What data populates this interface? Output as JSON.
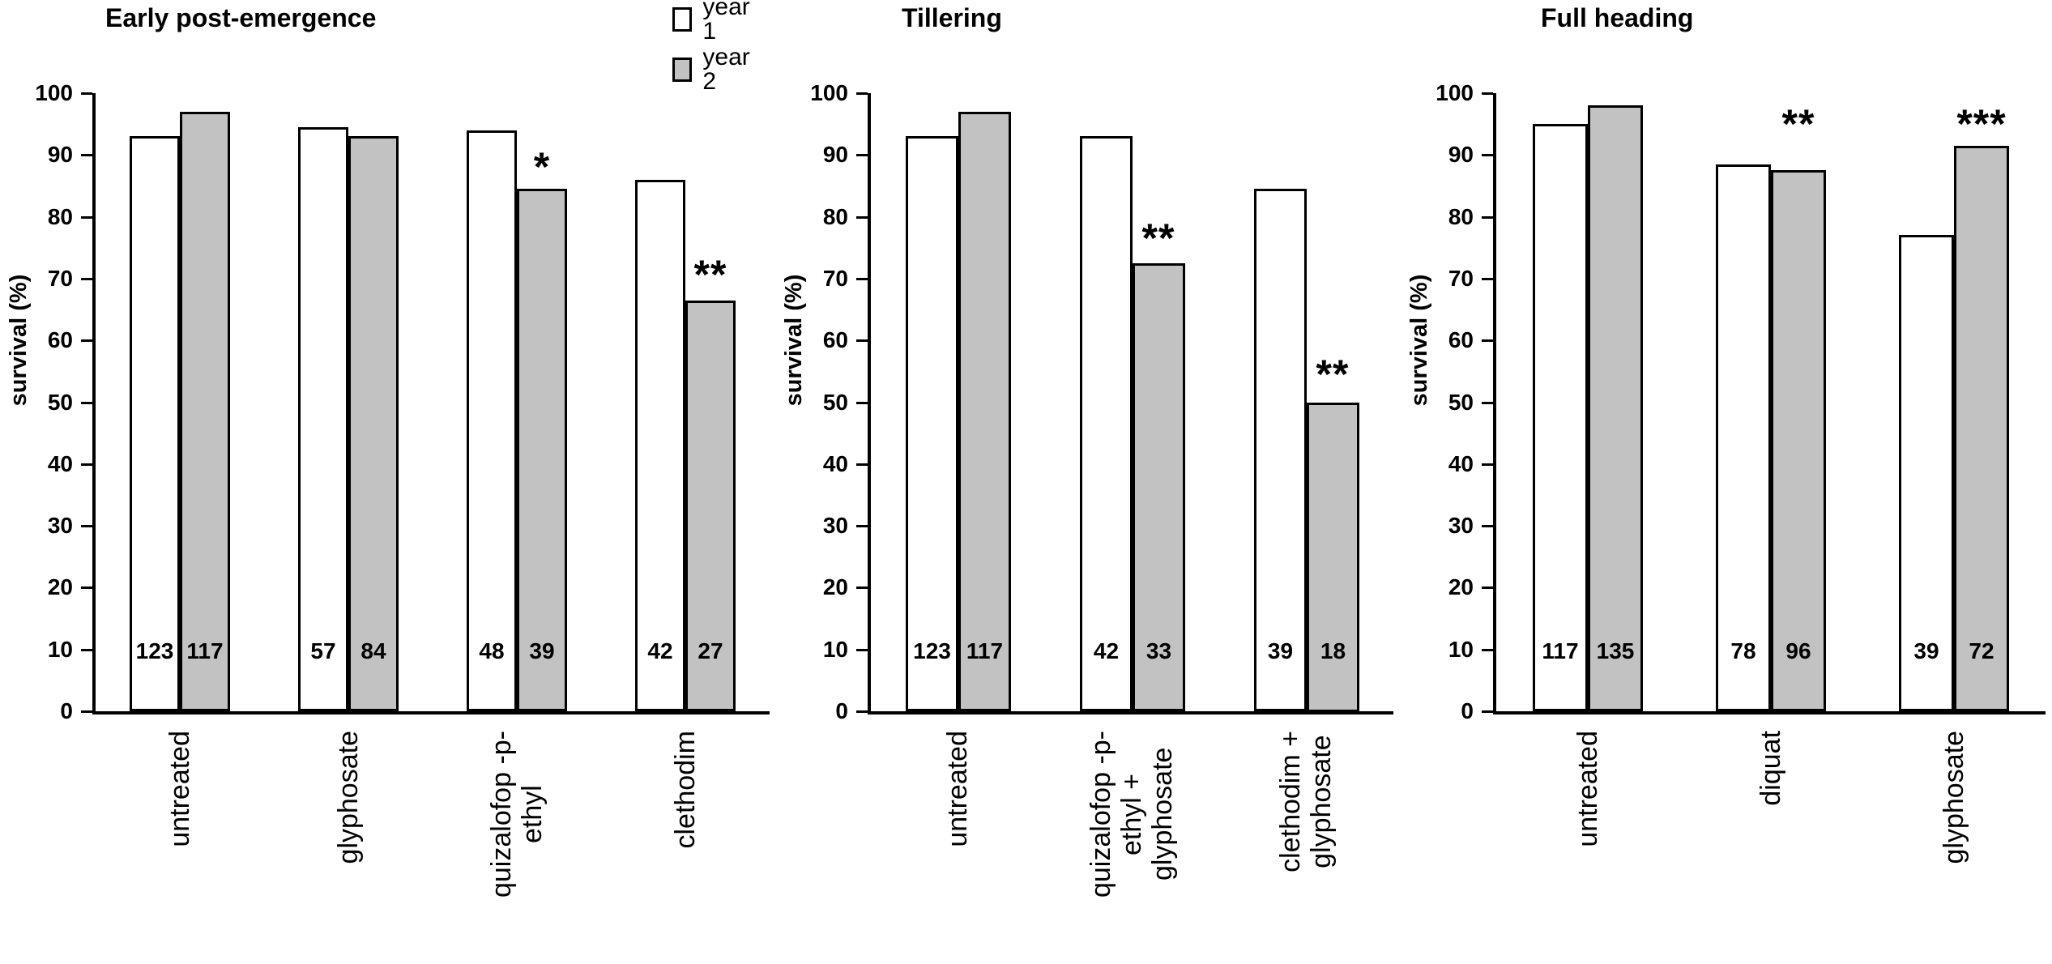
{
  "figure": {
    "background": "#ffffff",
    "bar_border_color": "#000000"
  },
  "legend": {
    "items": [
      {
        "label": "year 1",
        "color": "#ffffff"
      },
      {
        "label": "year 2",
        "color": "#c2c2c2"
      }
    ]
  },
  "chart_data": [
    {
      "type": "bar",
      "title": "Early post-emergence",
      "ylabel": "survival (%)",
      "ylim": [
        0,
        100
      ],
      "yticks": [
        0,
        10,
        20,
        30,
        40,
        50,
        60,
        70,
        80,
        90,
        100
      ],
      "grid": false,
      "legend_position": "top-right-of-panel",
      "categories": [
        "untreated",
        "glyphosate",
        "quizalofop -p-\nethyl",
        "clethodim"
      ],
      "series": [
        {
          "name": "year 1",
          "color": "#ffffff",
          "values": [
            93,
            94.5,
            94,
            86
          ]
        },
        {
          "name": "year 2",
          "color": "#c2c2c2",
          "values": [
            97,
            93,
            84.5,
            66.5
          ]
        }
      ],
      "n_labels": [
        [
          "123",
          "117"
        ],
        [
          "57",
          "84"
        ],
        [
          "48",
          "39"
        ],
        [
          "42",
          "27"
        ]
      ],
      "significance": [
        null,
        null,
        {
          "text": "*",
          "y": 89
        },
        {
          "text": "**",
          "y": 71.5
        }
      ]
    },
    {
      "type": "bar",
      "title": "Tillering",
      "ylabel": "survival (%)",
      "ylim": [
        0,
        100
      ],
      "yticks": [
        0,
        10,
        20,
        30,
        40,
        50,
        60,
        70,
        80,
        90,
        100
      ],
      "grid": false,
      "categories": [
        "untreated",
        "quizalofop -p-\nethyl +\nglyphosate",
        "clethodim +\nglyphosate"
      ],
      "series": [
        {
          "name": "year 1",
          "color": "#ffffff",
          "values": [
            93,
            93,
            84.5
          ]
        },
        {
          "name": "year 2",
          "color": "#c2c2c2",
          "values": [
            97,
            72.5,
            50
          ]
        }
      ],
      "n_labels": [
        [
          "123",
          "117"
        ],
        [
          "42",
          "33"
        ],
        [
          "39",
          "18"
        ]
      ],
      "significance": [
        null,
        {
          "text": "**",
          "y": 77.5
        },
        {
          "text": "**",
          "y": 55.5
        }
      ]
    },
    {
      "type": "bar",
      "title": "Full heading",
      "ylabel": "survival (%)",
      "ylim": [
        0,
        100
      ],
      "yticks": [
        0,
        10,
        20,
        30,
        40,
        50,
        60,
        70,
        80,
        90,
        100
      ],
      "grid": false,
      "categories": [
        "untreated",
        "diquat",
        "glyphosate"
      ],
      "series": [
        {
          "name": "year 1",
          "color": "#ffffff",
          "values": [
            95,
            88.5,
            77
          ]
        },
        {
          "name": "year 2",
          "color": "#c2c2c2",
          "values": [
            98,
            87.5,
            91.5
          ]
        }
      ],
      "n_labels": [
        [
          "117",
          "135"
        ],
        [
          "78",
          "96"
        ],
        [
          "39",
          "72"
        ]
      ],
      "significance": [
        null,
        {
          "text": "**",
          "y": 96
        },
        {
          "text": "***",
          "y": 96
        }
      ]
    }
  ]
}
